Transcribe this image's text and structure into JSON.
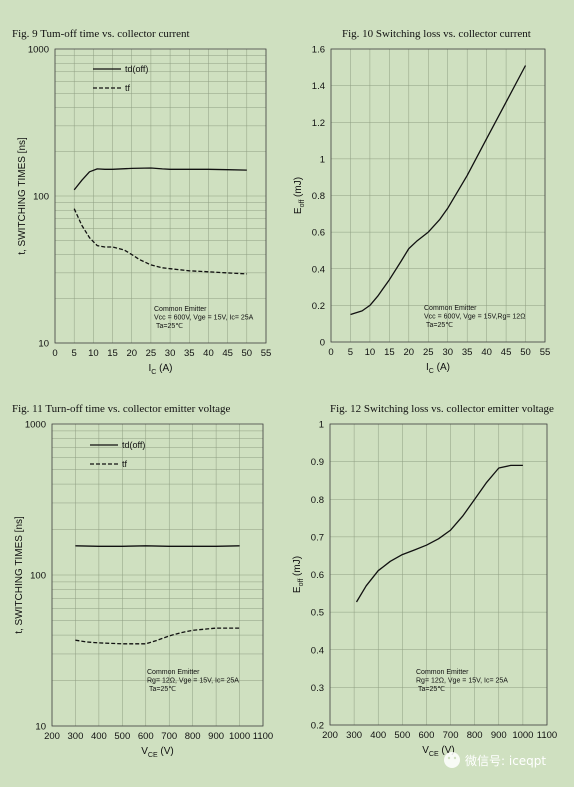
{
  "watermark": "微信号: iceqpt",
  "chart_data": [
    {
      "id": "fig9",
      "type": "line",
      "title": "Fig. 9  Tum-off time vs. collector current",
      "ylabel": "t, SWITCHING TIMES [ns]",
      "xlabel_main": "I",
      "xlabel_sub": "C",
      "xlabel_unit": " (A)",
      "xscale": "linear",
      "yscale": "log",
      "xlim": [
        0,
        55
      ],
      "ylim": [
        10,
        1000
      ],
      "xticks": [
        0,
        5,
        10,
        15,
        20,
        25,
        30,
        35,
        40,
        45,
        50,
        55
      ],
      "yticks": [
        10,
        100,
        1000
      ],
      "grid": true,
      "legend_position": "top-left",
      "series": [
        {
          "name": "td(off)",
          "dash": false,
          "x": [
            5,
            7,
            9,
            11,
            13,
            15,
            20,
            25,
            28,
            30,
            35,
            40,
            45,
            50
          ],
          "y": [
            110,
            128,
            146,
            153,
            152,
            152,
            154,
            155,
            153,
            152,
            152,
            152,
            151,
            150
          ]
        },
        {
          "name": "tf",
          "dash": true,
          "x": [
            5,
            7,
            9,
            11,
            13,
            15,
            18,
            20,
            22,
            25,
            28,
            30,
            35,
            40,
            45,
            50
          ],
          "y": [
            82,
            63,
            52,
            46,
            45,
            45,
            43,
            40,
            37,
            34,
            32.5,
            32,
            31,
            30.5,
            30,
            29.5
          ]
        }
      ],
      "annotation": [
        "Common Emitter",
        "Vcc = 600V, Vge = 15V, Ic= 25A",
        "Ta=25℃"
      ]
    },
    {
      "id": "fig10",
      "type": "line",
      "title": "Fig. 10  Switching loss vs. collector current",
      "ylabel_main": "E",
      "ylabel_sub": "off",
      "ylabel_unit": "   (mJ)",
      "xlabel_main": "I",
      "xlabel_sub": "C",
      "xlabel_unit": " (A)",
      "xscale": "linear",
      "yscale": "linear",
      "xlim": [
        0,
        55
      ],
      "ylim": [
        0,
        1.6
      ],
      "xticks": [
        0,
        5,
        10,
        15,
        20,
        25,
        30,
        35,
        40,
        45,
        50,
        55
      ],
      "yticks": [
        0,
        0.2,
        0.4,
        0.6,
        0.8,
        1,
        1.2,
        1.4,
        1.6
      ],
      "grid": true,
      "series": [
        {
          "dash": false,
          "x": [
            5,
            8,
            10,
            12,
            15,
            18,
            20,
            22,
            25,
            28,
            30,
            35,
            40,
            45,
            50
          ],
          "y": [
            0.15,
            0.17,
            0.2,
            0.25,
            0.34,
            0.44,
            0.51,
            0.55,
            0.6,
            0.67,
            0.73,
            0.91,
            1.11,
            1.31,
            1.51
          ]
        }
      ],
      "annotation": [
        "Common Emitter",
        "Vcc = 600V, Vge = 15V,Rg= 12Ω",
        "Ta=25℃"
      ]
    },
    {
      "id": "fig11",
      "type": "line",
      "title": "Fig. 11  Turn-off time vs. collector emitter voltage",
      "ylabel": "t, SWITCHING TIMES [ns]",
      "xlabel_main": "V",
      "xlabel_sub": "CE",
      "xlabel_unit": " (V)",
      "xscale": "linear",
      "yscale": "log",
      "xlim": [
        200,
        1100
      ],
      "ylim": [
        10,
        1000
      ],
      "xticks": [
        200,
        300,
        400,
        500,
        600,
        700,
        800,
        900,
        1000,
        1100
      ],
      "yticks": [
        10,
        100,
        1000
      ],
      "grid": true,
      "legend_position": "top-left",
      "series": [
        {
          "name": "td(off)",
          "dash": false,
          "x": [
            300,
            400,
            500,
            600,
            700,
            800,
            900,
            1000
          ],
          "y": [
            156,
            155,
            155,
            156,
            155,
            155,
            155,
            156
          ]
        },
        {
          "name": "tf",
          "dash": true,
          "x": [
            300,
            350,
            400,
            500,
            600,
            650,
            700,
            750,
            800,
            900,
            1000
          ],
          "y": [
            37,
            36,
            35.5,
            35,
            35,
            37,
            39.5,
            41.5,
            43,
            44.5,
            44.5
          ]
        }
      ],
      "annotation": [
        "Common Emitter",
        "Rg= 12Ω, Vge = 15V, Ic= 25A",
        "Ta=25℃"
      ]
    },
    {
      "id": "fig12",
      "type": "line",
      "title": "Fig. 12  Switching loss vs. collector emitter voltage",
      "ylabel_main": "E",
      "ylabel_sub": "off",
      "ylabel_unit": "   (mJ)",
      "xlabel_main": "V",
      "xlabel_sub": "CE",
      "xlabel_unit": " (V)",
      "xscale": "linear",
      "yscale": "linear",
      "xlim": [
        200,
        1100
      ],
      "ylim": [
        0.2,
        1
      ],
      "xticks": [
        200,
        300,
        400,
        500,
        600,
        700,
        800,
        900,
        1000,
        1100
      ],
      "yticks": [
        0.2,
        0.3,
        0.4,
        0.5,
        0.6,
        0.7,
        0.8,
        0.9,
        1
      ],
      "grid": true,
      "series": [
        {
          "dash": false,
          "x": [
            310,
            350,
            400,
            450,
            500,
            550,
            600,
            650,
            700,
            750,
            800,
            850,
            900,
            950,
            1000
          ],
          "y": [
            0.527,
            0.57,
            0.61,
            0.635,
            0.653,
            0.665,
            0.678,
            0.695,
            0.718,
            0.755,
            0.8,
            0.845,
            0.883,
            0.89,
            0.89
          ]
        }
      ],
      "annotation": [
        "Common Emitter",
        "Rg= 12Ω, Vge = 15V, Ic= 25A",
        "Ta=25℃"
      ]
    }
  ]
}
